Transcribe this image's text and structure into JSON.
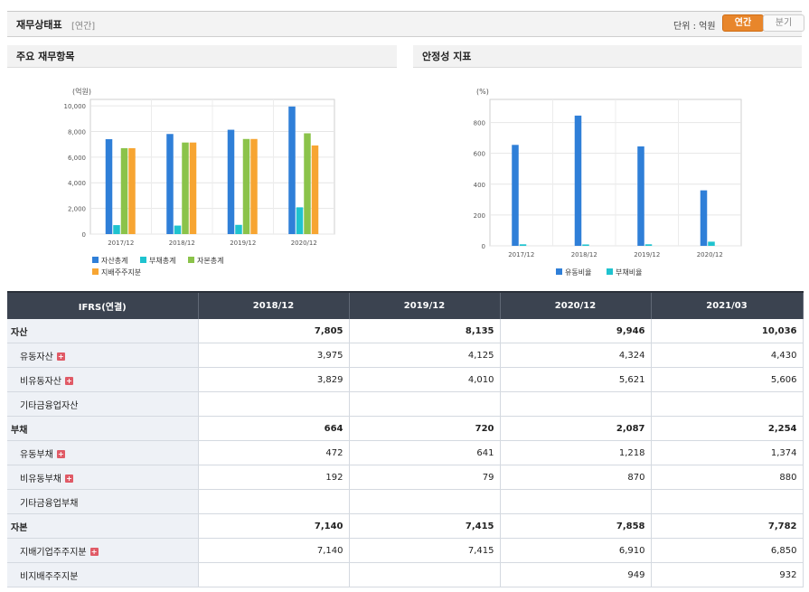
{
  "header": {
    "title": "재무상태표",
    "subtitle": "[연간]",
    "unit_label": "단위 : 억원",
    "toggle_annual": "연간",
    "toggle_quarter": "분기"
  },
  "panels": {
    "left_title": "주요 재무항목",
    "right_title": "안정성 지표"
  },
  "chart_data": [
    {
      "type": "bar",
      "title": "",
      "unit_label": "(억원)",
      "categories": [
        "2017/12",
        "2018/12",
        "2019/12",
        "2020/12"
      ],
      "series": [
        {
          "name": "자산총계",
          "color": "#2f7fd8",
          "values": [
            7400,
            7805,
            8135,
            9946
          ]
        },
        {
          "name": "부채총계",
          "color": "#1fc3cf",
          "values": [
            700,
            664,
            720,
            2087
          ]
        },
        {
          "name": "자본총계",
          "color": "#8bc34a",
          "values": [
            6700,
            7140,
            7415,
            7858
          ]
        },
        {
          "name": "지배주주지분",
          "color": "#f7a532",
          "values": [
            6700,
            7140,
            7415,
            6910
          ]
        }
      ],
      "y_ticks": [
        "0",
        "2,000",
        "4,000",
        "6,000",
        "8,000",
        "10,000"
      ],
      "ylim": [
        0,
        10500
      ],
      "grid": true,
      "legend": "bottom"
    },
    {
      "type": "bar",
      "title": "",
      "unit_label": "(%)",
      "categories": [
        "2017/12",
        "2018/12",
        "2019/12",
        "2020/12"
      ],
      "series": [
        {
          "name": "유동비율",
          "color": "#2f7fd8",
          "values": [
            655,
            845,
            645,
            360
          ]
        },
        {
          "name": "부채비율",
          "color": "#1fc3cf",
          "values": [
            10,
            9,
            10,
            27
          ]
        }
      ],
      "y_ticks": [
        "0",
        "200",
        "400",
        "600",
        "800"
      ],
      "ylim": [
        0,
        950
      ],
      "grid": true,
      "legend": "bottom"
    }
  ],
  "table": {
    "columns": [
      "IFRS(연결)",
      "2018/12",
      "2019/12",
      "2020/12",
      "2021/03"
    ],
    "rows": [
      {
        "label": "자산",
        "major": true,
        "expand": false,
        "values": [
          "7,805",
          "8,135",
          "9,946",
          "10,036"
        ]
      },
      {
        "label": "유동자산",
        "major": false,
        "expand": true,
        "values": [
          "3,975",
          "4,125",
          "4,324",
          "4,430"
        ]
      },
      {
        "label": "비유동자산",
        "major": false,
        "expand": true,
        "values": [
          "3,829",
          "4,010",
          "5,621",
          "5,606"
        ]
      },
      {
        "label": "기타금융업자산",
        "major": false,
        "expand": false,
        "values": [
          "",
          "",
          "",
          ""
        ]
      },
      {
        "label": "부채",
        "major": true,
        "expand": false,
        "values": [
          "664",
          "720",
          "2,087",
          "2,254"
        ]
      },
      {
        "label": "유동부채",
        "major": false,
        "expand": true,
        "values": [
          "472",
          "641",
          "1,218",
          "1,374"
        ]
      },
      {
        "label": "비유동부채",
        "major": false,
        "expand": true,
        "values": [
          "192",
          "79",
          "870",
          "880"
        ]
      },
      {
        "label": "기타금융업부채",
        "major": false,
        "expand": false,
        "values": [
          "",
          "",
          "",
          ""
        ]
      },
      {
        "label": "자본",
        "major": true,
        "expand": false,
        "values": [
          "7,140",
          "7,415",
          "7,858",
          "7,782"
        ]
      },
      {
        "label": "지배기업주주지분",
        "major": false,
        "expand": true,
        "values": [
          "7,140",
          "7,415",
          "6,910",
          "6,850"
        ]
      },
      {
        "label": "비지배주주지분",
        "major": false,
        "expand": false,
        "values": [
          "",
          "",
          "949",
          "932"
        ]
      }
    ]
  }
}
